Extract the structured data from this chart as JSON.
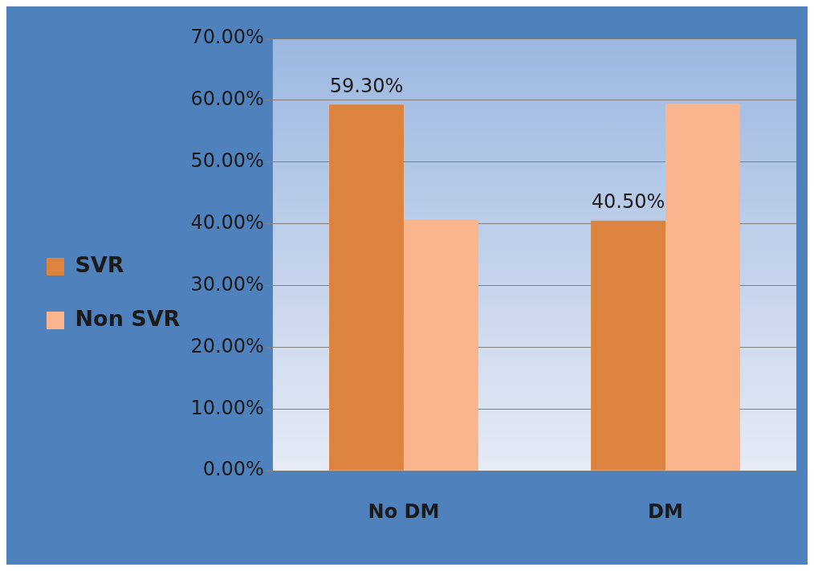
{
  "chart_data": {
    "type": "bar",
    "categories": [
      "No DM",
      "DM"
    ],
    "series": [
      {
        "name": "SVR",
        "color": "#dc843f",
        "values": [
          59.3,
          40.5
        ],
        "value_labels": [
          "59.30%",
          "40.50%"
        ]
      },
      {
        "name": "Non SVR",
        "color": "#f9b58e",
        "values": [
          40.7,
          59.5
        ]
      }
    ],
    "ylim": [
      0,
      70
    ],
    "yticks": [
      {
        "value": 0,
        "label": "0.00%"
      },
      {
        "value": 10,
        "label": "10.00%"
      },
      {
        "value": 20,
        "label": "20.00%"
      },
      {
        "value": 30,
        "label": "30.00%"
      },
      {
        "value": 40,
        "label": "40.00%"
      },
      {
        "value": 50,
        "label": "50.00%"
      },
      {
        "value": 60,
        "label": "60.00%"
      },
      {
        "value": 70,
        "label": "70.00%"
      }
    ],
    "grid": "y",
    "legend": "left"
  }
}
